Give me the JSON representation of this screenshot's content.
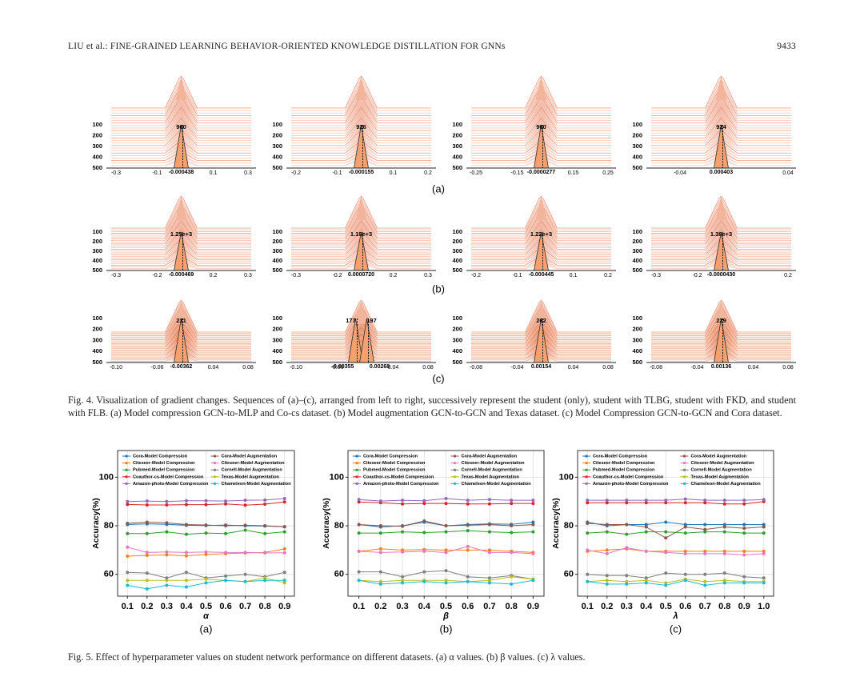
{
  "header": {
    "title": "LIU et al.: FINE-GRAINED LEARNING BEHAVIOR-ORIENTED KNOWLEDGE DISTILLATION FOR GNNs",
    "page": "9433"
  },
  "figure4": {
    "rows": [
      {
        "label": "(a)",
        "panels": [
          {
            "peaks": [
              "960"
            ],
            "centers": [
              "-0.000438"
            ],
            "xticks": [
              "-0.3",
              "-0.1",
              "0.1",
              "0.3"
            ],
            "yticks": [
              100,
              200,
              300,
              400,
              500
            ]
          },
          {
            "peaks": [
              "926"
            ],
            "centers": [
              "-0.000155"
            ],
            "xticks": [
              "-0.2",
              "-0.1",
              "0.1",
              "0.2"
            ],
            "yticks": [
              100,
              200,
              300,
              400,
              500
            ]
          },
          {
            "peaks": [
              "960"
            ],
            "centers": [
              "-0.0000277"
            ],
            "xticks": [
              "-0.25",
              "-0.15",
              "0.15",
              "0.25"
            ],
            "yticks": [
              100,
              200,
              300,
              400,
              500
            ]
          },
          {
            "peaks": [
              "924"
            ],
            "centers": [
              "0.000403"
            ],
            "xticks": [
              "-0.04",
              "0.04"
            ],
            "yticks": [
              100,
              200,
              300,
              400,
              500
            ]
          }
        ]
      },
      {
        "label": "(b)",
        "panels": [
          {
            "peaks": [
              "1.25e+3"
            ],
            "centers": [
              "-0.000469"
            ],
            "xticks": [
              "-0.3",
              "-0.2",
              "0.2",
              "0.3"
            ],
            "yticks": [
              100,
              200,
              300,
              400,
              500
            ]
          },
          {
            "peaks": [
              "1.18e+3"
            ],
            "centers": [
              "0.0000720"
            ],
            "xticks": [
              "-0.3",
              "-0.2",
              "0.2",
              "0.3"
            ],
            "yticks": [
              100,
              200,
              300,
              400,
              500
            ]
          },
          {
            "peaks": [
              "1.22e+3"
            ],
            "centers": [
              "-0.000445"
            ],
            "xticks": [
              "-0.2",
              "-0.1",
              "0.1",
              "0.2"
            ],
            "yticks": [
              100,
              200,
              300,
              400,
              500
            ]
          },
          {
            "peaks": [
              "1.38e+3"
            ],
            "centers": [
              "-0.0000430"
            ],
            "xticks": [
              "-0.3",
              "-0.2",
              "0.2"
            ],
            "yticks": [
              100,
              200,
              300,
              400,
              500
            ]
          }
        ]
      },
      {
        "label": "(c)",
        "panels": [
          {
            "peaks": [
              "231"
            ],
            "centers": [
              "-0.00362"
            ],
            "xticks": [
              "-0.10",
              "-0.06",
              "0.04",
              "0.08"
            ],
            "yticks": [
              100,
              200,
              300,
              400,
              500
            ]
          },
          {
            "peaks": [
              "177",
              "197"
            ],
            "centers": [
              "-0.00355",
              "0.00268"
            ],
            "xticks": [
              "-0.10",
              "-0.06",
              "0.04",
              "0.08"
            ],
            "yticks": [
              100,
              200,
              300,
              400,
              500
            ]
          },
          {
            "peaks": [
              "262"
            ],
            "centers": [
              "0.00154"
            ],
            "xticks": [
              "-0.08",
              "-0.04",
              "0.04",
              "0.08"
            ],
            "yticks": [
              100,
              200,
              300,
              400,
              500
            ]
          },
          {
            "peaks": [
              "229"
            ],
            "centers": [
              "0.00136"
            ],
            "xticks": [
              "-0.08",
              "-0.04",
              "0.04",
              "0.08"
            ],
            "yticks": [
              100,
              200,
              300,
              400,
              500
            ]
          }
        ]
      }
    ],
    "caption": "Fig. 4.   Visualization of gradient changes. Sequences of (a)–(c), arranged from left to right, successively represent the student (only), student with TLBG, student with FKD, and student with FLB. (a) Model compression GCN-to-MLP and Co-cs dataset. (b) Model augmentation GCN-to-GCN and Texas dataset. (c) Model Compression GCN-to-GCN and Cora dataset."
  },
  "figure5": {
    "caption": "Fig. 5.   Effect of hyperparameter values on student network performance on different datasets. (a) α values. (b) β values. (c) λ values."
  },
  "chart_data": [
    {
      "type": "line",
      "label": "(a)",
      "xlabel": "α",
      "ylabel": "Accuracy(%)",
      "x": [
        0.1,
        0.2,
        0.3,
        0.4,
        0.5,
        0.6,
        0.7,
        0.8,
        0.9
      ],
      "xlim": [
        0.05,
        0.95
      ],
      "xticks": [
        0.1,
        0.2,
        0.3,
        0.4,
        0.5,
        0.6,
        0.7,
        0.8,
        0.9
      ],
      "ylim": [
        51,
        111
      ],
      "yticks": [
        60,
        80,
        100
      ],
      "grid": true,
      "series": [
        {
          "name": "Cora-Model Compression",
          "color": "#1f77b4",
          "values": [
            80.5,
            80.8,
            80.6,
            80.2,
            80.1,
            80.3,
            80.0,
            79.9,
            79.6
          ]
        },
        {
          "name": "Citeseer-Model Compression",
          "color": "#ff7f0e",
          "values": [
            67.5,
            67.8,
            68.0,
            67.6,
            68.2,
            68.5,
            68.8,
            69.0,
            70.5
          ]
        },
        {
          "name": "Pubmed-Model Compression",
          "color": "#2ca02c",
          "values": [
            76.8,
            76.8,
            77.5,
            76.5,
            77.0,
            76.8,
            78.2,
            76.8,
            77.5
          ]
        },
        {
          "name": "Coauthor-cs-Model Compression",
          "color": "#d62728",
          "values": [
            88.8,
            88.6,
            88.6,
            88.7,
            88.7,
            89.0,
            88.5,
            88.9,
            89.8
          ]
        },
        {
          "name": "Amazon-photo-Model Compression",
          "color": "#9467bd",
          "values": [
            90.0,
            90.2,
            90.0,
            90.3,
            90.3,
            90.2,
            90.5,
            90.6,
            91.2
          ]
        },
        {
          "name": "Cora-Model Augmentation",
          "color": "#8c564b",
          "values": [
            81.0,
            81.5,
            81.2,
            80.5,
            80.3,
            80.0,
            80.2,
            80.0,
            79.6
          ]
        },
        {
          "name": "Citeseer-Model Augmentation",
          "color": "#e377c2",
          "values": [
            71.2,
            69.0,
            69.2,
            69.0,
            69.2,
            69.0,
            69.0,
            68.8,
            68.9
          ]
        },
        {
          "name": "Cornell-Model Augmentation",
          "color": "#7f7f7f",
          "values": [
            60.8,
            60.5,
            58.5,
            60.8,
            58.5,
            59.3,
            60.0,
            59.0,
            60.8
          ]
        },
        {
          "name": "Texas-Model Augmentation",
          "color": "#bcbd22",
          "values": [
            57.5,
            57.5,
            57.5,
            57.5,
            58.0,
            57.5,
            57.0,
            58.5,
            56.5
          ]
        },
        {
          "name": "Chameleon-Model Augmentation",
          "color": "#17becf",
          "values": [
            55.5,
            54.0,
            55.5,
            54.8,
            56.5,
            57.5,
            57.0,
            57.5,
            57.5
          ]
        }
      ]
    },
    {
      "type": "line",
      "label": "(b)",
      "xlabel": "β",
      "ylabel": "Accuracy(%)",
      "x": [
        0.1,
        0.2,
        0.3,
        0.4,
        0.5,
        0.6,
        0.7,
        0.8,
        0.9
      ],
      "xlim": [
        0.05,
        0.95
      ],
      "xticks": [
        0.1,
        0.2,
        0.3,
        0.4,
        0.5,
        0.6,
        0.7,
        0.8,
        0.9
      ],
      "ylim": [
        51,
        111
      ],
      "yticks": [
        60,
        80,
        100
      ],
      "grid": true,
      "series": [
        {
          "name": "Cora-Model Compression",
          "color": "#1f77b4",
          "values": [
            80.5,
            79.5,
            80.0,
            81.5,
            80.0,
            80.5,
            80.8,
            80.6,
            81.5
          ]
        },
        {
          "name": "Citeseer-Model Compression",
          "color": "#ff7f0e",
          "values": [
            69.5,
            70.5,
            70.0,
            70.2,
            70.0,
            70.0,
            70.0,
            69.5,
            69.0
          ]
        },
        {
          "name": "Pubmed-Model Compression",
          "color": "#2ca02c",
          "values": [
            77.0,
            77.0,
            77.5,
            77.2,
            77.5,
            78.0,
            77.5,
            77.2,
            77.5
          ]
        },
        {
          "name": "Coauthor-cs-Model Compression",
          "color": "#d62728",
          "values": [
            89.8,
            89.5,
            89.0,
            89.2,
            89.2,
            89.0,
            89.0,
            89.2,
            89.2
          ]
        },
        {
          "name": "Amazon-photo-Model Compression",
          "color": "#9467bd",
          "values": [
            90.8,
            90.2,
            90.5,
            90.3,
            91.2,
            90.5,
            90.8,
            90.5,
            90.5
          ]
        },
        {
          "name": "Cora-Model Augmentation",
          "color": "#8c564b",
          "values": [
            80.5,
            80.0,
            79.8,
            82.0,
            80.0,
            80.2,
            80.5,
            80.0,
            80.5
          ]
        },
        {
          "name": "Citeseer-Model Augmentation",
          "color": "#e377c2",
          "values": [
            69.5,
            69.0,
            69.2,
            69.5,
            69.0,
            71.5,
            69.0,
            69.0,
            68.5
          ]
        },
        {
          "name": "Cornell-Model Augmentation",
          "color": "#7f7f7f",
          "values": [
            61.0,
            61.0,
            59.0,
            61.0,
            61.5,
            59.0,
            58.5,
            59.5,
            58.0
          ]
        },
        {
          "name": "Texas-Model Augmentation",
          "color": "#bcbd22",
          "values": [
            57.5,
            57.0,
            57.5,
            57.5,
            57.5,
            57.0,
            57.5,
            59.0,
            58.0
          ]
        },
        {
          "name": "Chameleon-Model Augmentation",
          "color": "#17becf",
          "values": [
            57.5,
            56.0,
            56.5,
            57.0,
            56.5,
            57.0,
            56.5,
            56.0,
            57.5
          ]
        }
      ]
    },
    {
      "type": "line",
      "label": "(c)",
      "xlabel": "λ",
      "ylabel": "Accuracy(%)",
      "x": [
        0.1,
        0.2,
        0.3,
        0.4,
        0.5,
        0.6,
        0.7,
        0.8,
        0.9,
        1.0
      ],
      "xlim": [
        0.05,
        1.05
      ],
      "xticks": [
        0.1,
        0.2,
        0.3,
        0.4,
        0.5,
        0.6,
        0.7,
        0.8,
        0.9,
        {
          "value": 1,
          "label": "1.0"
        }
      ],
      "ylim": [
        51,
        111
      ],
      "yticks": [
        60,
        80,
        100
      ],
      "grid": true,
      "series": [
        {
          "name": "Cora-Model Compression",
          "color": "#1f77b4",
          "values": [
            81.5,
            80.0,
            80.5,
            80.5,
            81.5,
            80.5,
            80.5,
            80.5,
            80.5,
            80.5
          ]
        },
        {
          "name": "Citeseer-Model Compression",
          "color": "#ff7f0e",
          "values": [
            69.5,
            70.0,
            70.5,
            69.5,
            69.5,
            69.5,
            69.5,
            69.5,
            69.5,
            69.5
          ]
        },
        {
          "name": "Pubmed-Model Compression",
          "color": "#2ca02c",
          "values": [
            77.0,
            77.5,
            76.5,
            77.5,
            77.5,
            77.0,
            77.5,
            77.5,
            77.0,
            77.0
          ]
        },
        {
          "name": "Coauthor-cs-Model Compression",
          "color": "#d62728",
          "values": [
            89.5,
            89.5,
            89.5,
            89.5,
            89.5,
            89.5,
            89.5,
            89.0,
            89.0,
            90.0
          ]
        },
        {
          "name": "Amazon-photo-Model Compression",
          "color": "#9467bd",
          "values": [
            90.5,
            90.5,
            90.5,
            90.5,
            90.5,
            91.0,
            90.5,
            90.5,
            90.5,
            90.8
          ]
        },
        {
          "name": "Cora-Model Augmentation",
          "color": "#8c564b",
          "values": [
            81.0,
            80.5,
            80.5,
            79.5,
            75.0,
            79.5,
            78.5,
            79.5,
            79.0,
            79.5
          ]
        },
        {
          "name": "Citeseer-Model Augmentation",
          "color": "#e377c2",
          "values": [
            70.0,
            68.5,
            71.0,
            69.5,
            69.0,
            68.5,
            68.5,
            68.5,
            68.0,
            68.5
          ]
        },
        {
          "name": "Cornell-Model Augmentation",
          "color": "#7f7f7f",
          "values": [
            60.0,
            59.5,
            59.5,
            58.5,
            60.5,
            60.0,
            60.0,
            60.5,
            59.0,
            58.5
          ]
        },
        {
          "name": "Texas-Model Augmentation",
          "color": "#bcbd22",
          "values": [
            57.0,
            57.5,
            57.0,
            57.5,
            56.5,
            58.0,
            57.0,
            57.5,
            57.0,
            57.0
          ]
        },
        {
          "name": "Chameleon-Model Augmentation",
          "color": "#17becf",
          "values": [
            57.0,
            56.0,
            56.0,
            56.5,
            55.5,
            57.5,
            55.5,
            56.5,
            56.5,
            56.5
          ]
        }
      ]
    }
  ]
}
